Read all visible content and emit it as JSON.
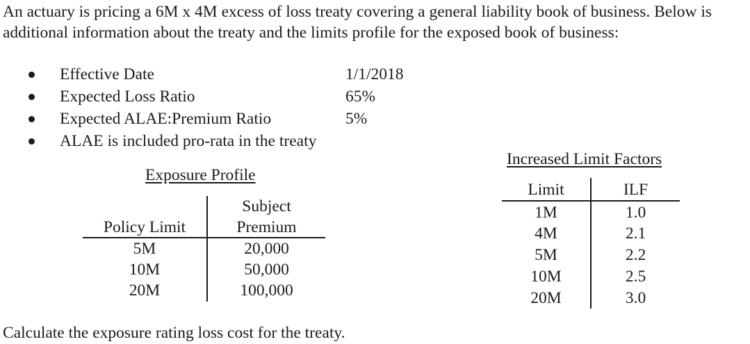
{
  "intro": {
    "line1": "An actuary is pricing a 6M x 4M excess of loss treaty covering a general liability book of business. Below is",
    "line2": "additional information about the treaty and the limits profile for the exposed book of business:"
  },
  "bullets": [
    {
      "label": "Effective Date",
      "value": "1/1/2018"
    },
    {
      "label": "Expected Loss Ratio",
      "value": "65%"
    },
    {
      "label": "Expected ALAE:Premium Ratio",
      "value": "5%"
    },
    {
      "label": "ALAE is included pro-rata in the treaty",
      "value": ""
    }
  ],
  "exposure_profile": {
    "title": "Exposure Profile",
    "header_col1": "Policy Limit",
    "header_col2_line1": "Subject",
    "header_col2_line2": "Premium",
    "rows": [
      {
        "limit": "5M",
        "premium": "20,000"
      },
      {
        "limit": "10M",
        "premium": "50,000"
      },
      {
        "limit": "20M",
        "premium": "100,000"
      }
    ]
  },
  "ilf_table": {
    "title": "Increased Limit Factors",
    "header_limit": "Limit",
    "header_ilf": "ILF",
    "rows": [
      {
        "limit": "1M",
        "ilf": "1.0"
      },
      {
        "limit": "4M",
        "ilf": "2.1"
      },
      {
        "limit": "5M",
        "ilf": "2.2"
      },
      {
        "limit": "10M",
        "ilf": "2.5"
      },
      {
        "limit": "20M",
        "ilf": "3.0"
      }
    ]
  },
  "question": "Calculate the exposure rating loss cost for the treaty."
}
